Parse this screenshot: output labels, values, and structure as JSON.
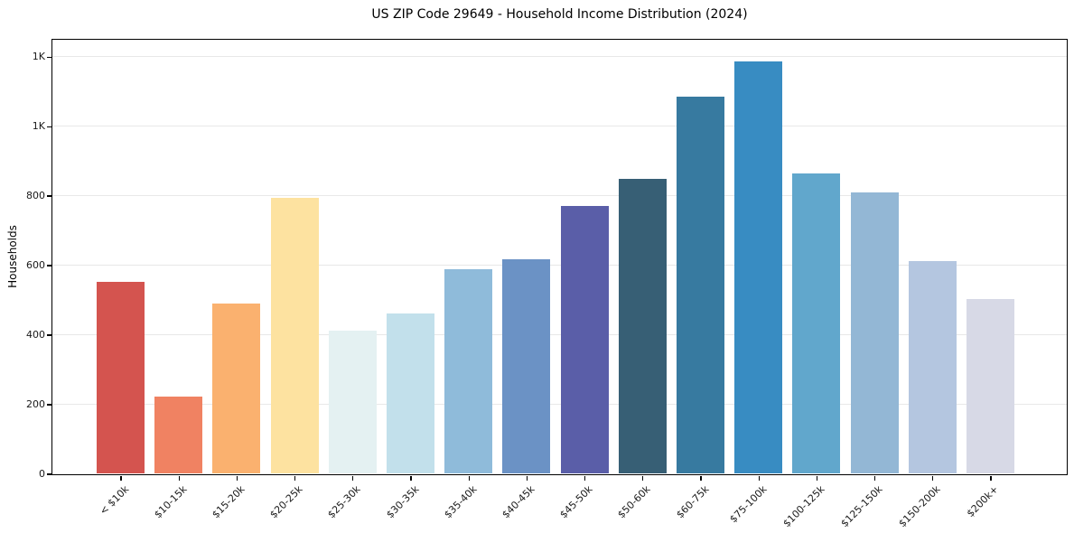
{
  "chart_data": {
    "type": "bar",
    "title": "US ZIP Code 29649 - Household Income Distribution (2024)",
    "xlabel": "",
    "ylabel": "Households",
    "categories": [
      "< $10k",
      "$10-15k",
      "$15-20k",
      "$20-25k",
      "$25-30k",
      "$30-35k",
      "$35-40k",
      "$40-45k",
      "$45-50k",
      "$50-60k",
      "$60-75k",
      "$75-100k",
      "$100-125k",
      "$125-150k",
      "$150-200k",
      "$200k+"
    ],
    "values": [
      552,
      221,
      490,
      795,
      412,
      462,
      588,
      617,
      770,
      848,
      1086,
      1186,
      865,
      810,
      612,
      503
    ],
    "bar_colors": [
      "#d4544f",
      "#f08262",
      "#fab16f",
      "#fde2a0",
      "#e4f1f2",
      "#c2e0eb",
      "#8fbbda",
      "#6b92c5",
      "#5a5ea8",
      "#375f75",
      "#377aa0",
      "#388cc2",
      "#61a7cc",
      "#93b7d5",
      "#b4c6e0",
      "#d7d9e6"
    ],
    "ylim": [
      0,
      1250
    ],
    "yticks": {
      "values": [
        0,
        200,
        400,
        600,
        800,
        1000,
        1200
      ],
      "labels": [
        "0",
        "200",
        "400",
        "600",
        "800",
        "1K",
        "1K"
      ]
    },
    "grid": "horizontal-only",
    "grid_color": "#e8e8e8",
    "background_color": "#ffffff",
    "spine_color": "#000000",
    "legend": "none",
    "x_tick_rotation_deg": 45
  }
}
